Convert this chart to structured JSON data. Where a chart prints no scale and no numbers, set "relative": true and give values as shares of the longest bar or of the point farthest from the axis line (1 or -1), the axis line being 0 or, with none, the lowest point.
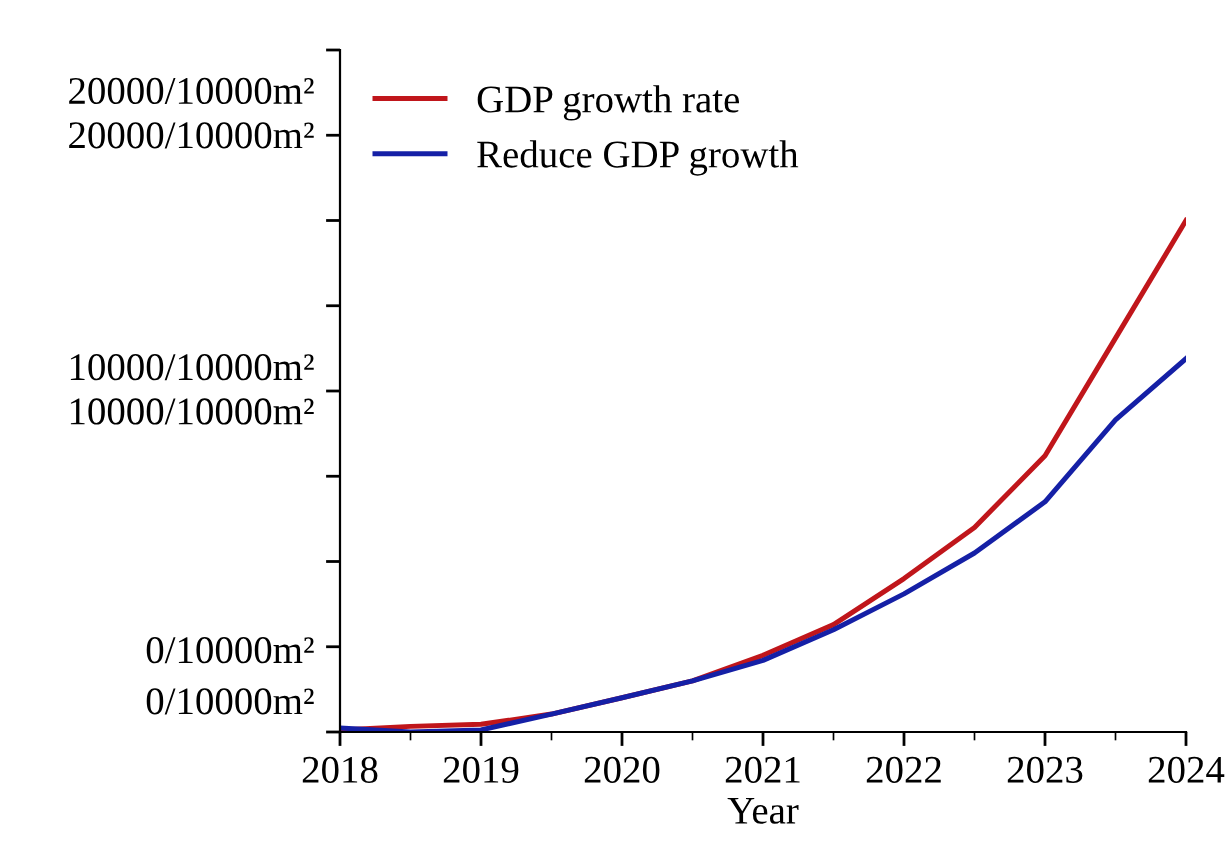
{
  "chart_data": {
    "type": "line",
    "xlabel": "Year",
    "relative": true,
    "x": [
      2018,
      2018.5,
      2019,
      2019.5,
      2020,
      2020.5,
      2021,
      2021.5,
      2022,
      2022.5,
      2023,
      2023.5,
      2024
    ],
    "series": [
      {
        "name": "GDP growth rate",
        "color": "#c0161b",
        "values": [
          0.004,
          0.011,
          0.015,
          0.035,
          0.067,
          0.1,
          0.15,
          0.21,
          0.3,
          0.4,
          0.54,
          0.77,
          1
        ]
      },
      {
        "name": "Reduce GDP growth",
        "color": "#1520a6",
        "values": [
          0.008,
          0,
          0.004,
          0.035,
          0.067,
          0.1,
          0.14,
          0.2,
          0.27,
          0.35,
          0.45,
          0.61,
          0.73
        ]
      }
    ],
    "xlim": [
      2018,
      2024
    ],
    "xticks": [
      2018,
      2019,
      2020,
      2021,
      2022,
      2023,
      2024
    ],
    "annotations": [
      "0/10000m²",
      "0/10000m²",
      "10000/10000m²",
      "10000/10000m²",
      "20000/10000m²",
      "20000/10000m²"
    ],
    "legend": "top left",
    "grid": false,
    "marker": "none",
    "line_style": "solid"
  }
}
